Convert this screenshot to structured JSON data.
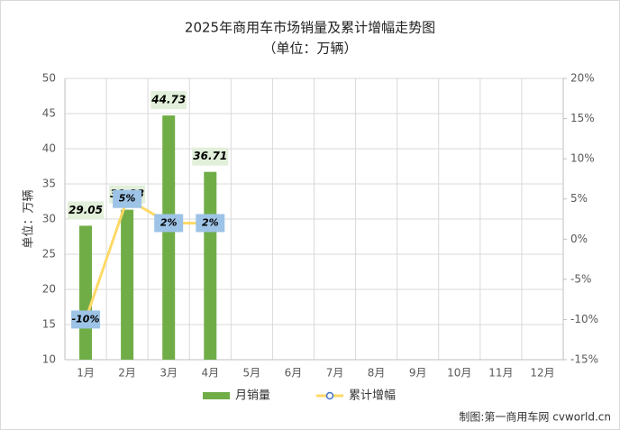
{
  "chart_data": {
    "type": "bar_line",
    "title": "2025年商用车市场销量及累计增幅走势图",
    "subtitle": "（单位：万辆）",
    "y_axis_label": "单位：万辆",
    "categories": [
      "1月",
      "2月",
      "3月",
      "4月",
      "5月",
      "6月",
      "7月",
      "8月",
      "9月",
      "10月",
      "11月",
      "12月"
    ],
    "series": [
      {
        "name": "月销量",
        "type": "bar",
        "color": "#70ad47",
        "label_box": "#e2efda",
        "values": [
          29.05,
          31.33,
          44.73,
          36.71,
          null,
          null,
          null,
          null,
          null,
          null,
          null,
          null
        ]
      },
      {
        "name": "累计增幅",
        "type": "line",
        "axis": "y2",
        "color": "#ffd966",
        "label_box": "#9dc3e6",
        "values": [
          -10,
          5,
          2,
          2,
          null,
          null,
          null,
          null,
          null,
          null,
          null,
          null
        ],
        "value_labels": [
          "-10%",
          "5%",
          "2%",
          "2%",
          null,
          null,
          null,
          null,
          null,
          null,
          null,
          null
        ]
      }
    ],
    "ylim": [
      10,
      50
    ],
    "yticks": [
      10,
      15,
      20,
      25,
      30,
      35,
      40,
      45,
      50
    ],
    "y2lim": [
      -15,
      20
    ],
    "y2ticks": [
      {
        "value": -15,
        "label": "-15%"
      },
      {
        "value": -10,
        "label": "-10%"
      },
      {
        "value": -5,
        "label": "-5%"
      },
      {
        "value": 0,
        "label": "0%"
      },
      {
        "value": 5,
        "label": "5%"
      },
      {
        "value": 10,
        "label": "10%"
      },
      {
        "value": 15,
        "label": "15%"
      },
      {
        "value": 20,
        "label": "20%"
      }
    ],
    "grid": true,
    "legend": "bottom",
    "source": "制图:第一商用车网 cvworld.cn"
  }
}
